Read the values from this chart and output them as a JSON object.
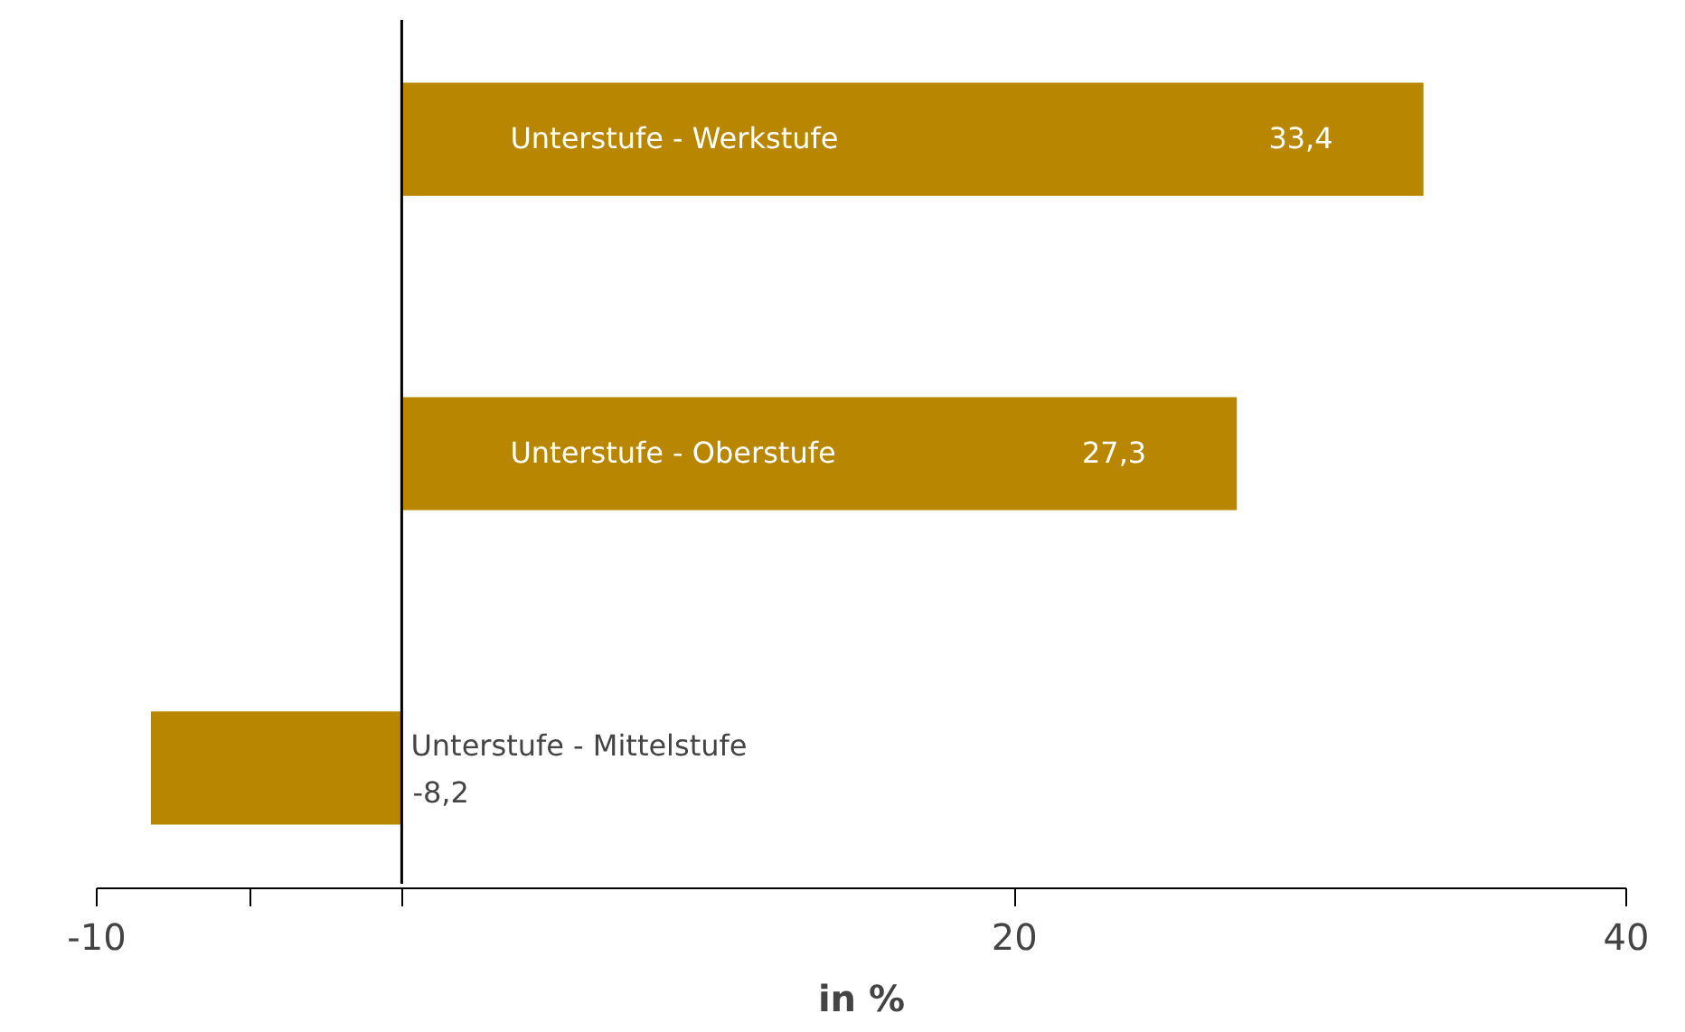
{
  "chart_data": {
    "type": "bar",
    "orientation": "horizontal",
    "xlabel": "in %",
    "categories": [
      "Unterstufe - Werkstufe",
      "Unterstufe - Oberstufe",
      "Unterstufe - Mittelstufe"
    ],
    "values": [
      33.4,
      27.3,
      -8.2
    ],
    "color": "#b98600",
    "value_labels": [
      "33,4",
      "27,3",
      "-8,2"
    ],
    "xlim": [
      -10,
      40
    ],
    "xticks": [
      -10,
      {
        "value": -5,
        "label": null
      },
      {
        "value": 0,
        "label": null
      },
      20,
      40
    ],
    "ref_lines": [
      {
        "axis": "x",
        "value": 0
      }
    ],
    "grid": false
  }
}
